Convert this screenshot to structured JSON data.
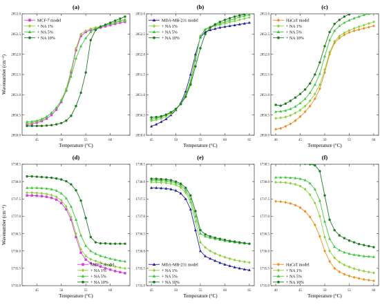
{
  "y_axis_label": "Wavenumber (cm⁻¹)",
  "chart_data": [
    {
      "panel": "(a)",
      "type": "line",
      "xlabel": "Temperature (°C)",
      "ylabel": "Wavenumber (cm⁻¹)",
      "xlim": [
        42,
        64
      ],
      "ylim": [
        2850.0,
        2853.0
      ],
      "xticks": [
        45,
        50,
        55,
        60
      ],
      "yticks": [
        2850.0,
        2850.5,
        2851.0,
        2851.5,
        2852.0,
        2852.5,
        2853.0
      ],
      "legend_position": "top-left",
      "grid": false,
      "x": [
        43,
        44,
        45,
        46,
        47,
        48,
        49,
        50,
        51,
        52,
        53,
        54,
        55,
        56,
        57,
        58,
        59,
        60,
        61,
        62,
        63
      ],
      "series": [
        {
          "name": "MCF-7 model",
          "color": "#d63fd6",
          "marker": "square",
          "values": [
            2850.27,
            2850.28,
            2850.31,
            2850.35,
            2850.41,
            2850.5,
            2850.63,
            2850.82,
            2851.1,
            2851.55,
            2852.1,
            2852.45,
            2852.55,
            2852.6,
            2852.63,
            2852.66,
            2852.69,
            2852.72,
            2852.75,
            2852.78,
            2852.8
          ]
        },
        {
          "name": "+ NA 1%",
          "color": "#8ccf3c",
          "marker": "diamond",
          "values": [
            2850.3,
            2850.31,
            2850.34,
            2850.38,
            2850.45,
            2850.55,
            2850.68,
            2850.87,
            2851.15,
            2851.6,
            2852.15,
            2852.5,
            2852.58,
            2852.63,
            2852.66,
            2852.69,
            2852.72,
            2852.75,
            2852.78,
            2852.81,
            2852.83
          ]
        },
        {
          "name": "+ NA 5%",
          "color": "#3cc83c",
          "marker": "triangle",
          "values": [
            2850.33,
            2850.34,
            2850.36,
            2850.4,
            2850.46,
            2850.55,
            2850.68,
            2850.85,
            2851.1,
            2851.45,
            2851.9,
            2852.2,
            2852.4,
            2852.55,
            2852.63,
            2852.68,
            2852.72,
            2852.75,
            2852.79,
            2852.83,
            2852.86
          ]
        },
        {
          "name": "+ NA 10%",
          "color": "#1e7a1e",
          "marker": "circle",
          "values": [
            2850.23,
            2850.23,
            2850.23,
            2850.23,
            2850.24,
            2850.25,
            2850.27,
            2850.3,
            2850.36,
            2850.48,
            2850.72,
            2851.05,
            2851.55,
            2852.35,
            2852.6,
            2852.68,
            2852.73,
            2852.78,
            2852.83,
            2852.88,
            2852.93
          ]
        }
      ]
    },
    {
      "panel": "(b)",
      "type": "line",
      "xlabel": "Temperature (°C)",
      "ylabel": "",
      "xlim": [
        44,
        66
      ],
      "ylim": [
        2850.0,
        2853.0
      ],
      "xticks": [
        45,
        50,
        55,
        60,
        65
      ],
      "yticks": [
        2850.0,
        2850.5,
        2851.0,
        2851.5,
        2852.0,
        2852.5,
        2853.0
      ],
      "legend_position": "top-left",
      "grid": false,
      "x": [
        45,
        46,
        47,
        48,
        49,
        50,
        51,
        52,
        53,
        54,
        55,
        56,
        57,
        58,
        59,
        60,
        61,
        62,
        63,
        64,
        65
      ],
      "series": [
        {
          "name": "MDA-MB-231 model",
          "color": "#1f1f9a",
          "marker": "triangle",
          "values": [
            2850.22,
            2850.27,
            2850.33,
            2850.4,
            2850.5,
            2850.62,
            2850.8,
            2851.08,
            2851.5,
            2852.0,
            2852.42,
            2852.55,
            2852.6,
            2852.63,
            2852.66,
            2852.68,
            2852.7,
            2852.72,
            2852.74,
            2852.76,
            2852.78
          ]
        },
        {
          "name": "+ NA 1%",
          "color": "#8ccf3c",
          "marker": "diamond",
          "values": [
            2850.36,
            2850.38,
            2850.41,
            2850.46,
            2850.53,
            2850.63,
            2850.78,
            2851.0,
            2851.35,
            2851.9,
            2852.45,
            2852.6,
            2852.66,
            2852.7,
            2852.73,
            2852.76,
            2852.79,
            2852.82,
            2852.85,
            2852.88,
            2852.91
          ]
        },
        {
          "name": "+ NA 5%",
          "color": "#3cc83c",
          "marker": "triangle",
          "values": [
            2850.4,
            2850.42,
            2850.45,
            2850.5,
            2850.56,
            2850.65,
            2850.78,
            2850.98,
            2851.3,
            2851.85,
            2852.45,
            2852.62,
            2852.68,
            2852.72,
            2852.76,
            2852.8,
            2852.84,
            2852.88,
            2852.92,
            2852.95,
            2852.98
          ]
        },
        {
          "name": "+ NA 10%",
          "color": "#1e7a1e",
          "marker": "circle",
          "values": [
            2850.44,
            2850.45,
            2850.47,
            2850.51,
            2850.57,
            2850.65,
            2850.77,
            2850.95,
            2851.25,
            2851.7,
            2852.15,
            2852.5,
            2852.66,
            2852.74,
            2852.8,
            2852.85,
            2852.89,
            2852.93,
            2852.96,
            2852.99,
            2853.02
          ]
        }
      ]
    },
    {
      "panel": "(c)",
      "type": "line",
      "xlabel": "Temperature (°C)",
      "ylabel": "",
      "xlim": [
        39,
        61
      ],
      "ylim": [
        2850.0,
        2853.0
      ],
      "xticks": [
        40,
        45,
        50,
        55,
        60
      ],
      "yticks": [
        2850.0,
        2850.5,
        2851.0,
        2851.5,
        2852.0,
        2852.5,
        2853.0
      ],
      "legend_position": "top-left",
      "grid": false,
      "x": [
        40,
        41,
        42,
        43,
        44,
        45,
        46,
        47,
        48,
        49,
        50,
        51,
        52,
        53,
        54,
        55,
        56,
        57,
        58,
        59,
        60
      ],
      "series": [
        {
          "name": "HaCaT model",
          "color": "#f08c1e",
          "marker": "diamond",
          "values": [
            2850.15,
            2850.17,
            2850.22,
            2850.28,
            2850.36,
            2850.46,
            2850.58,
            2850.72,
            2850.9,
            2851.15,
            2851.55,
            2852.0,
            2852.28,
            2852.4,
            2852.48,
            2852.54,
            2852.58,
            2852.61,
            2852.64,
            2852.67,
            2852.7
          ]
        },
        {
          "name": "+ NA 1%",
          "color": "#8ccf3c",
          "marker": "diamond",
          "values": [
            2850.42,
            2850.43,
            2850.45,
            2850.49,
            2850.55,
            2850.62,
            2850.72,
            2850.85,
            2851.02,
            2851.25,
            2851.62,
            2852.05,
            2852.32,
            2852.45,
            2852.53,
            2852.59,
            2852.64,
            2852.68,
            2852.72,
            2852.76,
            2852.8
          ]
        },
        {
          "name": "+ NA 5%",
          "color": "#3cc83c",
          "marker": "triangle",
          "values": [
            2850.58,
            2850.59,
            2850.61,
            2850.65,
            2850.71,
            2850.79,
            2850.9,
            2851.05,
            2851.25,
            2851.52,
            2851.95,
            2852.35,
            2852.58,
            2852.7,
            2852.78,
            2852.84,
            2852.89,
            2852.93,
            2852.97,
            2853.0,
            2853.03
          ]
        },
        {
          "name": "+ NA 10%",
          "color": "#1e7a1e",
          "marker": "circle",
          "values": [
            2850.75,
            2850.73,
            2850.78,
            2850.85,
            2850.93,
            2851.02,
            2851.13,
            2851.28,
            2851.5,
            2851.8,
            2852.2,
            2852.55,
            2852.75,
            2852.85,
            2852.93,
            2852.99,
            2853.04,
            2853.08,
            2853.11,
            2853.13,
            2853.15
          ]
        }
      ]
    },
    {
      "panel": "(d)",
      "type": "line",
      "xlabel": "Temperature (°C)",
      "ylabel": "Wavenumber (cm⁻¹)",
      "xlim": [
        42,
        64
      ],
      "ylim": [
        1735.0,
        1738.5
      ],
      "xticks": [
        45,
        50,
        55,
        60
      ],
      "yticks": [
        1735.0,
        1735.5,
        1736.0,
        1736.5,
        1737.0,
        1737.5,
        1738.0,
        1738.5
      ],
      "legend_position": "bottom-right",
      "grid": false,
      "x": [
        43,
        44,
        45,
        46,
        47,
        48,
        49,
        50,
        51,
        52,
        53,
        54,
        55,
        56,
        57,
        58,
        59,
        60,
        61,
        62,
        63
      ],
      "series": [
        {
          "name": "MCF-7 model",
          "color": "#d63fd6",
          "marker": "square",
          "values": [
            1737.6,
            1737.6,
            1737.59,
            1737.58,
            1737.56,
            1737.53,
            1737.48,
            1737.38,
            1737.2,
            1736.9,
            1736.4,
            1735.95,
            1735.75,
            1735.65,
            1735.6,
            1735.55,
            1735.5,
            1735.46,
            1735.42,
            1735.39,
            1735.36
          ]
        },
        {
          "name": "+ NA 1%",
          "color": "#8ccf3c",
          "marker": "diamond",
          "values": [
            1737.68,
            1737.68,
            1737.67,
            1737.66,
            1737.64,
            1737.61,
            1737.56,
            1737.46,
            1737.28,
            1736.98,
            1736.5,
            1736.05,
            1735.85,
            1735.76,
            1735.71,
            1735.66,
            1735.62,
            1735.58,
            1735.55,
            1735.52,
            1735.5
          ]
        },
        {
          "name": "+ NA 5%",
          "color": "#3cc83c",
          "marker": "triangle",
          "values": [
            1737.82,
            1737.82,
            1737.82,
            1737.81,
            1737.8,
            1737.78,
            1737.74,
            1737.66,
            1737.52,
            1737.28,
            1736.9,
            1736.45,
            1736.15,
            1736.0,
            1735.92,
            1735.86,
            1735.82,
            1735.78,
            1735.75,
            1735.72,
            1735.7
          ]
        },
        {
          "name": "+ NA 10%",
          "color": "#1e7a1e",
          "marker": "circle",
          "values": [
            1738.15,
            1738.15,
            1738.14,
            1738.13,
            1738.12,
            1738.11,
            1738.09,
            1738.06,
            1738.01,
            1737.92,
            1737.75,
            1737.45,
            1736.95,
            1736.4,
            1736.25,
            1736.22,
            1736.22,
            1736.21,
            1736.21,
            1736.21,
            1736.21
          ]
        }
      ]
    },
    {
      "panel": "(e)",
      "type": "line",
      "xlabel": "Temperature (°C)",
      "ylabel": "",
      "xlim": [
        44,
        66
      ],
      "ylim": [
        1735.0,
        1738.5
      ],
      "xticks": [
        45,
        50,
        55,
        60,
        65
      ],
      "yticks": [
        1735.0,
        1735.5,
        1736.0,
        1736.5,
        1737.0,
        1737.5,
        1738.0,
        1738.5
      ],
      "legend_position": "bottom-left",
      "grid": false,
      "x": [
        45,
        46,
        47,
        48,
        49,
        50,
        51,
        52,
        53,
        54,
        55,
        56,
        57,
        58,
        59,
        60,
        61,
        62,
        63,
        64,
        65
      ],
      "series": [
        {
          "name": "MDA-MB-231 model",
          "color": "#1f1f9a",
          "marker": "triangle",
          "values": [
            1737.82,
            1737.82,
            1737.81,
            1737.8,
            1737.78,
            1737.74,
            1737.66,
            1737.5,
            1737.2,
            1736.6,
            1736.0,
            1735.85,
            1735.78,
            1735.72,
            1735.66,
            1735.61,
            1735.57,
            1735.53,
            1735.5,
            1735.47,
            1735.45
          ]
        },
        {
          "name": "+ NA 1%",
          "color": "#8ccf3c",
          "marker": "diamond",
          "values": [
            1737.98,
            1737.98,
            1737.97,
            1737.96,
            1737.94,
            1737.9,
            1737.83,
            1737.68,
            1737.4,
            1736.85,
            1736.25,
            1736.1,
            1736.0,
            1735.93,
            1735.87,
            1735.82,
            1735.78,
            1735.74,
            1735.71,
            1735.69,
            1735.67
          ]
        },
        {
          "name": "+ NA 5%",
          "color": "#3cc83c",
          "marker": "triangle",
          "values": [
            1738.04,
            1738.04,
            1738.03,
            1738.02,
            1738.0,
            1737.96,
            1737.89,
            1737.75,
            1737.5,
            1737.0,
            1736.5,
            1736.42,
            1736.38,
            1736.35,
            1736.32,
            1736.29,
            1736.27,
            1736.25,
            1736.23,
            1736.22,
            1736.21
          ]
        },
        {
          "name": "+ NA 10%",
          "color": "#1e7a1e",
          "marker": "circle",
          "values": [
            1738.08,
            1738.08,
            1738.07,
            1738.06,
            1738.04,
            1738.0,
            1737.94,
            1737.82,
            1737.6,
            1737.15,
            1736.6,
            1736.48,
            1736.42,
            1736.38,
            1736.35,
            1736.32,
            1736.29,
            1736.27,
            1736.25,
            1736.23,
            1736.21
          ]
        }
      ]
    },
    {
      "panel": "(f)",
      "type": "line",
      "xlabel": "Temperature (°C)",
      "ylabel": "",
      "xlim": [
        39,
        61
      ],
      "ylim": [
        1735.0,
        1738.5
      ],
      "xticks": [
        40,
        45,
        50,
        55,
        60
      ],
      "yticks": [
        1735.0,
        1735.5,
        1736.0,
        1736.5,
        1737.0,
        1737.5,
        1738.0,
        1738.5
      ],
      "legend_position": "bottom-left",
      "grid": false,
      "x": [
        40,
        41,
        42,
        43,
        44,
        45,
        46,
        47,
        48,
        49,
        50,
        51,
        52,
        53,
        54,
        55,
        56,
        57,
        58,
        59,
        60
      ],
      "series": [
        {
          "name": "HaCaT model",
          "color": "#f08c1e",
          "marker": "diamond",
          "values": [
            1737.43,
            1737.42,
            1737.4,
            1737.37,
            1737.32,
            1737.25,
            1737.14,
            1736.98,
            1736.75,
            1736.42,
            1736.0,
            1735.7,
            1735.5,
            1735.4,
            1735.33,
            1735.28,
            1735.24,
            1735.21,
            1735.18,
            1735.16,
            1735.14
          ]
        },
        {
          "name": "+ NA 1%",
          "color": "#8ccf3c",
          "marker": "diamond",
          "values": [
            1737.98,
            1737.98,
            1737.97,
            1737.95,
            1737.92,
            1737.87,
            1737.78,
            1737.62,
            1737.38,
            1737.0,
            1736.4,
            1736.0,
            1735.8,
            1735.68,
            1735.6,
            1735.54,
            1735.49,
            1735.45,
            1735.42,
            1735.39,
            1735.37
          ]
        },
        {
          "name": "+ NA 5%",
          "color": "#3cc83c",
          "marker": "triangle",
          "values": [
            1738.12,
            1738.12,
            1738.12,
            1738.11,
            1738.1,
            1738.08,
            1738.04,
            1737.95,
            1737.78,
            1737.45,
            1736.85,
            1736.35,
            1736.12,
            1736.02,
            1735.96,
            1735.92,
            1735.89,
            1735.87,
            1735.85,
            1735.84,
            1735.83
          ]
        },
        {
          "name": "+ NA 10%",
          "color": "#1e7a1e",
          "marker": "circle",
          "values": [
            1738.52,
            1738.52,
            1738.52,
            1738.52,
            1738.52,
            1738.52,
            1738.51,
            1738.5,
            1738.47,
            1738.3,
            1737.6,
            1736.9,
            1736.6,
            1736.45,
            1736.37,
            1736.3,
            1736.25,
            1736.2,
            1736.17,
            1736.14,
            1736.11
          ]
        }
      ]
    }
  ]
}
